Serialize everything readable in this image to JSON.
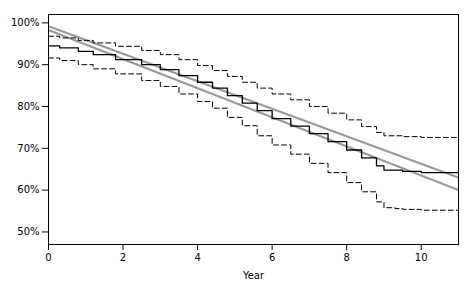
{
  "chart_data": {
    "type": "line",
    "xlabel": "Year",
    "xlim": [
      0,
      11
    ],
    "ylim": [
      0.47,
      1.02
    ],
    "xticks": [
      0,
      2,
      4,
      6,
      8,
      10
    ],
    "yticks": [
      {
        "value": 0.5,
        "label": "50%"
      },
      {
        "value": 0.6,
        "label": "60%"
      },
      {
        "value": 0.7,
        "label": "70%"
      },
      {
        "value": 0.8,
        "label": "80%"
      },
      {
        "value": 0.9,
        "label": "90%"
      },
      {
        "value": 1.0,
        "label": "100%"
      }
    ],
    "grid": false,
    "series": [
      {
        "type": "line",
        "color": "#999999",
        "line_style": "solid",
        "x": [
          0,
          11
        ],
        "values": [
          0.992,
          0.63
        ]
      },
      {
        "type": "line",
        "color": "#999999",
        "line_style": "solid",
        "x": [
          0,
          11
        ],
        "values": [
          0.983,
          0.6
        ]
      },
      {
        "type": "step",
        "color": "black",
        "line_style": "solid",
        "x": [
          0,
          0.3,
          0.8,
          1.2,
          1.8,
          2.5,
          3.0,
          3.5,
          4.0,
          4.4,
          4.8,
          5.2,
          5.6,
          6.0,
          6.5,
          7.0,
          7.5,
          8.0,
          8.4,
          8.8,
          9.0,
          9.5,
          10.0,
          10.5,
          11.0
        ],
        "values": [
          0.945,
          0.94,
          0.932,
          0.924,
          0.912,
          0.9,
          0.888,
          0.874,
          0.858,
          0.844,
          0.826,
          0.808,
          0.79,
          0.771,
          0.753,
          0.735,
          0.716,
          0.696,
          0.677,
          0.658,
          0.648,
          0.645,
          0.642,
          0.642,
          0.642
        ]
      },
      {
        "type": "step",
        "color": "black",
        "line_style": "dashed",
        "x": [
          0,
          0.3,
          0.8,
          1.2,
          1.8,
          2.5,
          3.0,
          3.5,
          4.0,
          4.4,
          4.8,
          5.2,
          5.6,
          6.0,
          6.5,
          7.0,
          7.5,
          8.0,
          8.4,
          8.8,
          9.0,
          9.5,
          10.0,
          10.5,
          11.0
        ],
        "values": [
          0.968,
          0.964,
          0.958,
          0.952,
          0.944,
          0.934,
          0.924,
          0.912,
          0.898,
          0.886,
          0.872,
          0.858,
          0.844,
          0.83,
          0.816,
          0.8,
          0.784,
          0.768,
          0.752,
          0.738,
          0.73,
          0.728,
          0.726,
          0.726,
          0.726
        ]
      },
      {
        "type": "step",
        "color": "black",
        "line_style": "dashed",
        "x": [
          0,
          0.3,
          0.8,
          1.2,
          1.8,
          2.5,
          3.0,
          3.5,
          4.0,
          4.4,
          4.8,
          5.2,
          5.6,
          6.0,
          6.5,
          7.0,
          7.5,
          8.0,
          8.4,
          8.8,
          9.0,
          9.3,
          9.5,
          10.0,
          10.5,
          11.0
        ],
        "values": [
          0.916,
          0.91,
          0.9,
          0.89,
          0.878,
          0.862,
          0.848,
          0.83,
          0.812,
          0.796,
          0.774,
          0.754,
          0.73,
          0.708,
          0.686,
          0.664,
          0.642,
          0.618,
          0.596,
          0.572,
          0.558,
          0.556,
          0.554,
          0.552,
          0.552,
          0.552
        ]
      }
    ]
  }
}
